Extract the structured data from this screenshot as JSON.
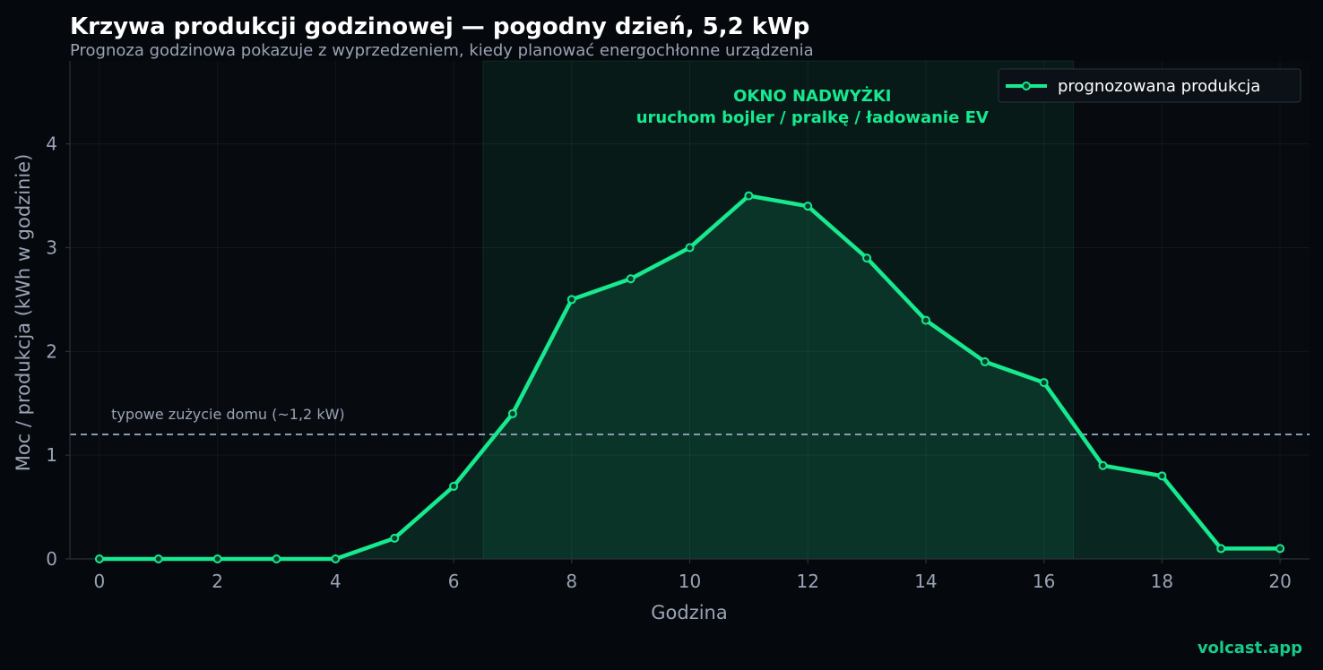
{
  "chart_data": {
    "type": "line",
    "title": "Krzywa produkcji godzinowej — pogodny dzień, 5,2 kWp",
    "subtitle": "Prognoza godzinowa pokazuje z wyprzedzeniem, kiedy planować energochłonne urządzenia",
    "xlabel": "Godzina",
    "ylabel": "Moc / produkcja (kWh w godzinie)",
    "xlim": [
      -0.5,
      20.5
    ],
    "ylim": [
      0,
      4.8
    ],
    "xticks": [
      0,
      2,
      4,
      6,
      8,
      10,
      12,
      14,
      16,
      18,
      20
    ],
    "yticks": [
      0,
      1,
      2,
      3,
      4
    ],
    "grid": true,
    "x": [
      0,
      1,
      2,
      3,
      4,
      5,
      6,
      7,
      8,
      9,
      10,
      11,
      12,
      13,
      14,
      15,
      16,
      17,
      18,
      19,
      20
    ],
    "series": [
      {
        "name": "prognozowana produkcja",
        "color": "#17e98f",
        "values": [
          0,
          0,
          0,
          0,
          0,
          0.2,
          0.7,
          1.4,
          2.5,
          2.7,
          3.0,
          3.5,
          3.4,
          2.9,
          2.3,
          1.9,
          1.7,
          0.9,
          0.8,
          0.1,
          0.1
        ]
      }
    ],
    "legend": {
      "position": "top-right",
      "label": "prognozowana produkcja"
    },
    "reference_line": {
      "y": 1.2,
      "label": "typowe zużycie domu (~1,2 kW)",
      "color": "#8a9bb0"
    },
    "highlight_window": {
      "x_start": 6.5,
      "x_end": 16.5,
      "label_line1": "OKNO NADWYŻKI",
      "label_line2": "uruchom bojler / pralkę / ładowanie EV",
      "color": "#17e98f"
    }
  },
  "brand": {
    "text": "volcast.app"
  },
  "colors": {
    "background": "#05080c",
    "plot_background": "#070b10",
    "accent": "#17e98f"
  }
}
